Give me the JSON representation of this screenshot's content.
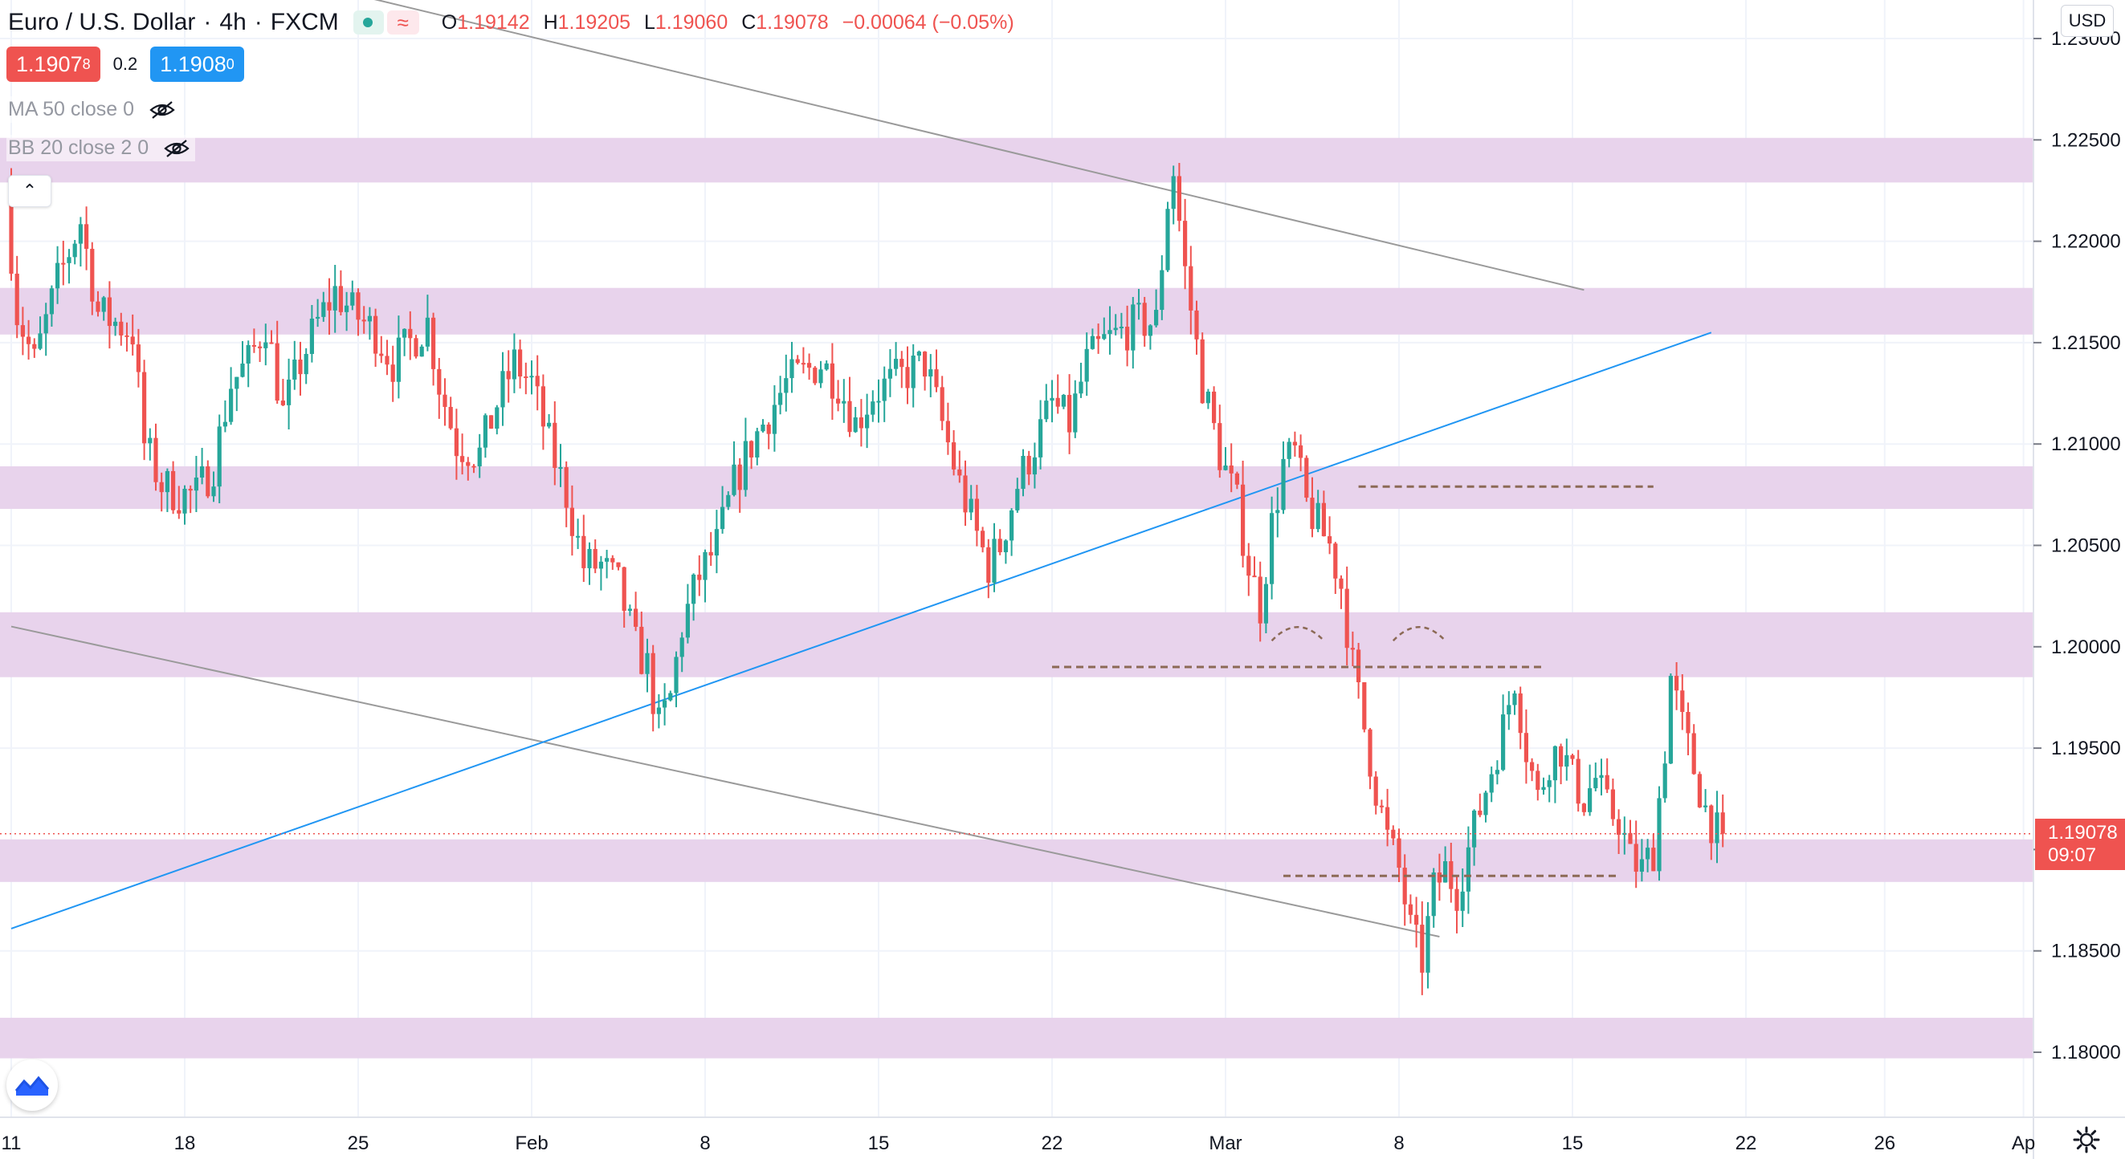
{
  "header": {
    "symbol_name": "Euro / U.S. Dollar",
    "interval": "4h",
    "exchange": "FXCM",
    "ohlc": [
      {
        "key": "O",
        "value": "1.19142"
      },
      {
        "key": "H",
        "value": "1.19205"
      },
      {
        "key": "L",
        "value": "1.19060"
      },
      {
        "key": "C",
        "value": "1.19078"
      },
      {
        "key": "",
        "value": "−0.00064 (−0.05%)"
      }
    ]
  },
  "trade": {
    "sell_main": "1.1907",
    "sell_pip": "8",
    "spread": "0.2",
    "buy_main": "1.1908",
    "buy_pip": "0"
  },
  "indicators": [
    {
      "label": "MA 50 close 0",
      "icon": "eye-hidden-icon"
    },
    {
      "label": "BB 20 close 2 0",
      "icon": "eye-hidden-icon"
    }
  ],
  "currency_button": "USD",
  "last_price": {
    "value": "1.19078",
    "countdown": "09:07"
  },
  "colors": {
    "up": "#26a69a",
    "down": "#ef5350",
    "zone": "#e8d3ec",
    "support_line": "#8c6a56",
    "trend_gray": "#9a9a9a",
    "trend_blue": "#2196f3"
  },
  "chart_data": {
    "type": "candlestick",
    "symbol": "EURUSD",
    "timeframe": "4h",
    "y_axis": {
      "range": [
        1.179,
        1.2306
      ],
      "ticks": [
        "1.23000",
        "1.22500",
        "1.22000",
        "1.21500",
        "1.21000",
        "1.20500",
        "1.20000",
        "1.19500",
        "1.19000",
        "1.18500",
        "1.18000"
      ]
    },
    "x_axis": {
      "ticks": [
        {
          "label": "11",
          "bar": 0
        },
        {
          "label": "18",
          "bar": 30
        },
        {
          "label": "25",
          "bar": 60
        },
        {
          "label": "Feb",
          "bar": 90
        },
        {
          "label": "8",
          "bar": 120
        },
        {
          "label": "15",
          "bar": 150
        },
        {
          "label": "22",
          "bar": 180
        },
        {
          "label": "Mar",
          "bar": 210
        },
        {
          "label": "8",
          "bar": 240
        },
        {
          "label": "15",
          "bar": 270
        },
        {
          "label": "22",
          "bar": 300
        },
        {
          "label": "26",
          "bar": 324
        },
        {
          "label": "Ap",
          "bar": 348
        }
      ]
    },
    "path_points": [
      [
        0,
        1.2225
      ],
      [
        2,
        1.2165
      ],
      [
        5,
        1.214
      ],
      [
        9,
        1.218
      ],
      [
        13,
        1.221
      ],
      [
        16,
        1.2165
      ],
      [
        19,
        1.216
      ],
      [
        22,
        1.2155
      ],
      [
        24,
        1.21
      ],
      [
        27,
        1.208
      ],
      [
        30,
        1.2075
      ],
      [
        33,
        1.2075
      ],
      [
        36,
        1.209
      ],
      [
        39,
        1.213
      ],
      [
        42,
        1.214
      ],
      [
        45,
        1.216
      ],
      [
        48,
        1.2115
      ],
      [
        51,
        1.214
      ],
      [
        54,
        1.216
      ],
      [
        57,
        1.2175
      ],
      [
        60,
        1.2165
      ],
      [
        64,
        1.2155
      ],
      [
        67,
        1.214
      ],
      [
        70,
        1.215
      ],
      [
        73,
        1.216
      ],
      [
        75,
        1.213
      ],
      [
        78,
        1.21
      ],
      [
        82,
        1.2095
      ],
      [
        85,
        1.212
      ],
      [
        88,
        1.214
      ],
      [
        91,
        1.213
      ],
      [
        94,
        1.21
      ],
      [
        97,
        1.2075
      ],
      [
        100,
        1.204
      ],
      [
        103,
        1.204
      ],
      [
        106,
        1.203
      ],
      [
        109,
        1.2
      ],
      [
        111,
        1.199
      ],
      [
        113,
        1.196
      ],
      [
        115,
        1.1975
      ],
      [
        117,
        1.201
      ],
      [
        120,
        1.2035
      ],
      [
        123,
        1.205
      ],
      [
        126,
        1.208
      ],
      [
        129,
        1.21
      ],
      [
        132,
        1.2115
      ],
      [
        135,
        1.213
      ],
      [
        138,
        1.2135
      ],
      [
        141,
        1.214
      ],
      [
        144,
        1.213
      ],
      [
        147,
        1.211
      ],
      [
        150,
        1.2125
      ],
      [
        153,
        1.213
      ],
      [
        156,
        1.2135
      ],
      [
        159,
        1.214
      ],
      [
        162,
        1.211
      ],
      [
        165,
        1.208
      ],
      [
        168,
        1.2055
      ],
      [
        170,
        1.204
      ],
      [
        172,
        1.205
      ],
      [
        175,
        1.208
      ],
      [
        178,
        1.21
      ],
      [
        181,
        1.212
      ],
      [
        184,
        1.211
      ],
      [
        187,
        1.214
      ],
      [
        190,
        1.215
      ],
      [
        193,
        1.2155
      ],
      [
        196,
        1.216
      ],
      [
        199,
        1.216
      ],
      [
        201,
        1.222
      ],
      [
        202,
        1.2235
      ],
      [
        204,
        1.2185
      ],
      [
        207,
        1.213
      ],
      [
        210,
        1.2095
      ],
      [
        213,
        1.207
      ],
      [
        215,
        1.204
      ],
      [
        217,
        1.202
      ],
      [
        219,
        1.206
      ],
      [
        221,
        1.209
      ],
      [
        223,
        1.2095
      ],
      [
        225,
        1.207
      ],
      [
        227,
        1.206
      ],
      [
        229,
        1.205
      ],
      [
        231,
        1.203
      ],
      [
        233,
        1.199
      ],
      [
        235,
        1.196
      ],
      [
        237,
        1.193
      ],
      [
        239,
        1.1905
      ],
      [
        241,
        1.189
      ],
      [
        243,
        1.186
      ],
      [
        245,
        1.1845
      ],
      [
        247,
        1.188
      ],
      [
        249,
        1.189
      ],
      [
        251,
        1.188
      ],
      [
        253,
        1.19
      ],
      [
        255,
        1.192
      ],
      [
        257,
        1.194
      ],
      [
        259,
        1.196
      ],
      [
        261,
        1.1985
      ],
      [
        263,
        1.195
      ],
      [
        265,
        1.1925
      ],
      [
        267,
        1.1945
      ],
      [
        269,
        1.195
      ],
      [
        271,
        1.1935
      ],
      [
        273,
        1.1925
      ],
      [
        275,
        1.1935
      ],
      [
        277,
        1.192
      ],
      [
        279,
        1.1915
      ],
      [
        281,
        1.1895
      ],
      [
        283,
        1.189
      ],
      [
        285,
        1.19
      ],
      [
        287,
        1.195
      ],
      [
        288,
        1.1985
      ],
      [
        290,
        1.196
      ],
      [
        292,
        1.194
      ],
      [
        294,
        1.192
      ],
      [
        296,
        1.1908
      ]
    ],
    "zones": [
      [
        1.2229,
        1.2251
      ],
      [
        1.2154,
        1.2177
      ],
      [
        1.2068,
        1.2089
      ],
      [
        1.1985,
        1.2017
      ],
      [
        1.1884,
        1.1905
      ],
      [
        1.1797,
        1.1817
      ]
    ],
    "trendlines": [
      {
        "color": "gray",
        "from": [
          40,
          1.2335
        ],
        "to": [
          272,
          1.2176
        ]
      },
      {
        "color": "gray",
        "from": [
          0,
          1.201
        ],
        "to": [
          247,
          1.1857
        ]
      },
      {
        "color": "blue",
        "from": [
          0,
          1.1861
        ],
        "to": [
          294,
          1.2155
        ]
      }
    ],
    "horizontal_levels": [
      {
        "value": 1.2079,
        "from": 233,
        "to": 284
      },
      {
        "value": 1.199,
        "from": 180,
        "to": 265
      },
      {
        "value": 1.1887,
        "from": 220,
        "to": 278
      }
    ],
    "pattern_arcs": [
      [
        218,
        227,
        1.2003
      ],
      [
        239,
        248,
        1.2003
      ]
    ],
    "current_price": 1.19078
  }
}
